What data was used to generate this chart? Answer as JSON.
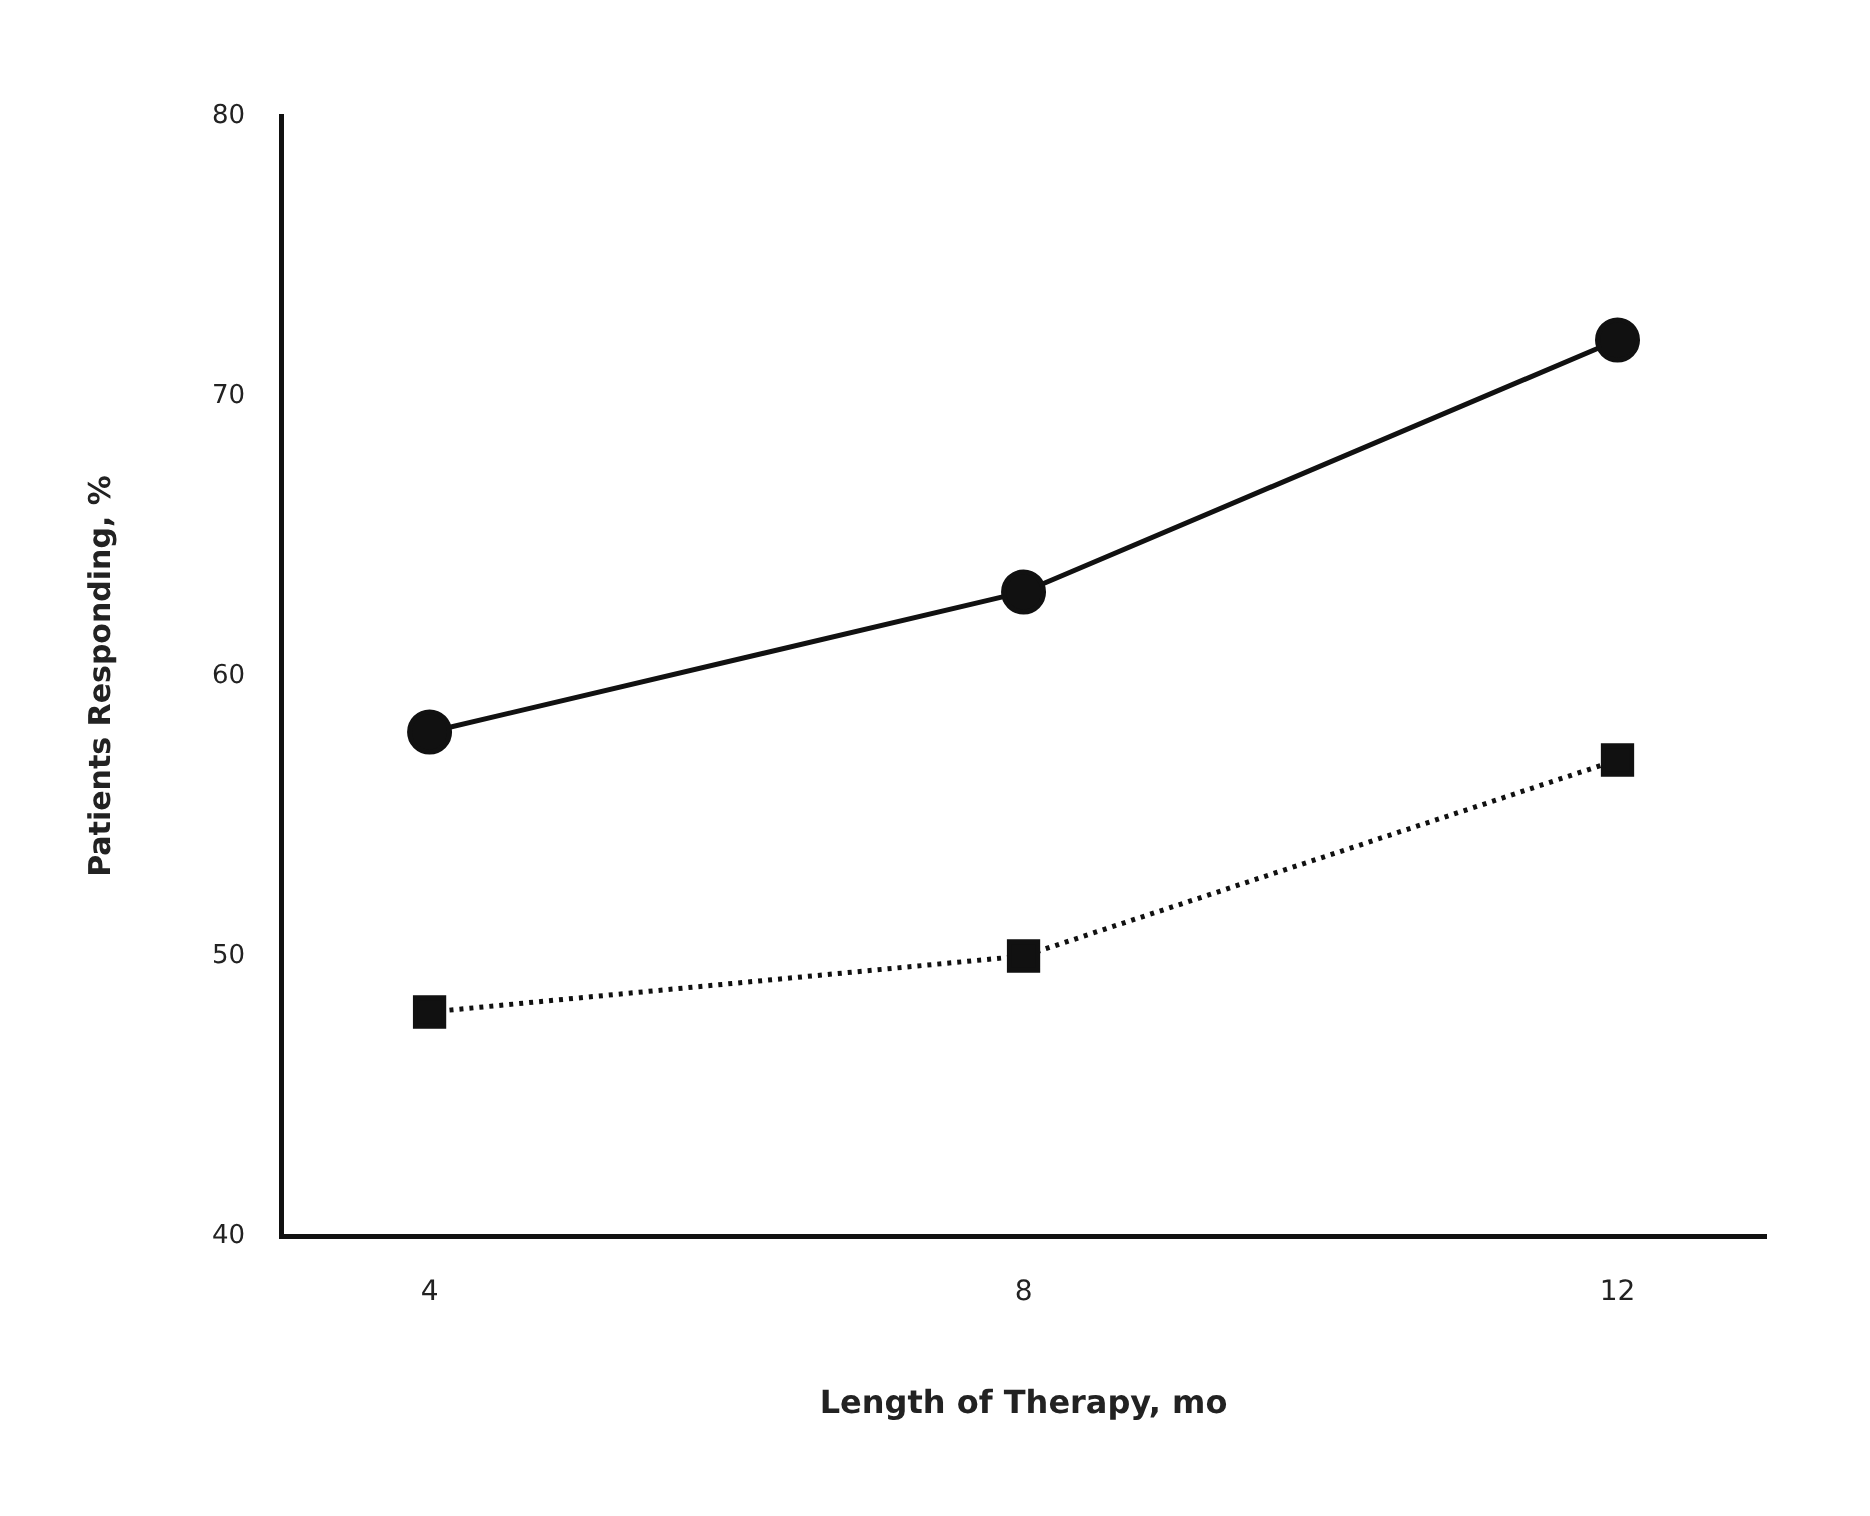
{
  "chart_data": {
    "type": "line",
    "xlabel": "Length of Therapy, mo",
    "ylabel": "Patients Responding, %",
    "x": [
      4,
      8,
      12
    ],
    "series": [
      {
        "color": "#111111",
        "values": [
          58,
          63,
          72
        ],
        "marker": "circle",
        "line_style": "solid"
      },
      {
        "color": "#111111",
        "values": [
          48,
          50,
          57
        ],
        "marker": "square",
        "line_style": "dotted"
      }
    ],
    "xlim": [
      3,
      13
    ],
    "xticks": [
      4,
      8,
      12
    ],
    "ylim": [
      40,
      80
    ],
    "yticks": [
      40,
      50,
      60,
      70,
      80
    ],
    "grid": false,
    "legend": false
  }
}
